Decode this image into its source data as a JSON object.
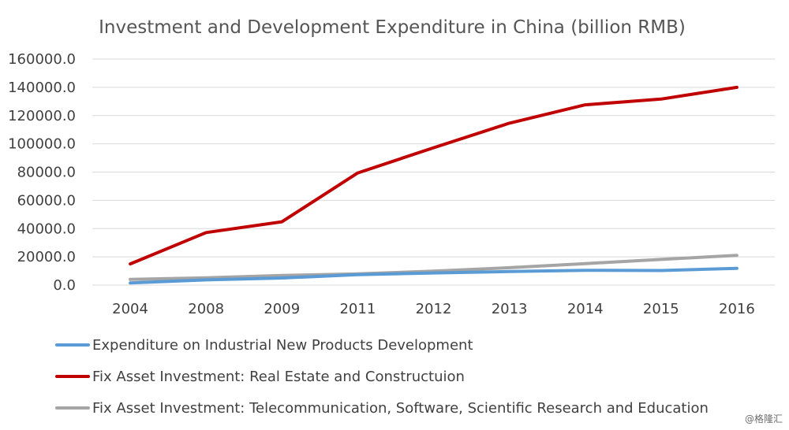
{
  "watermark": "@格隆汇",
  "chart_data": {
    "type": "line",
    "title": "Investment and Development Expenditure in China (billion RMB)",
    "xlabel": "",
    "ylabel": "",
    "categories": [
      "2004",
      "2008",
      "2009",
      "2011",
      "2012",
      "2013",
      "2014",
      "2015",
      "2016"
    ],
    "ylim": [
      0,
      160000
    ],
    "yticks": [
      "0.0",
      "20000.0",
      "40000.0",
      "60000.0",
      "80000.0",
      "100000.0",
      "120000.0",
      "140000.0",
      "160000.0"
    ],
    "grid": true,
    "legend_position": "bottom",
    "series": [
      {
        "name": "Expenditure on Industrial New Products Development",
        "color": "#5b9bd5",
        "values": [
          1500,
          3700,
          5000,
          7400,
          8600,
          9600,
          10500,
          10300,
          11800
        ]
      },
      {
        "name": "Fix Asset Investment: Real Estate and Constructuion",
        "color": "#c00000",
        "values": [
          15000,
          37200,
          44800,
          79400,
          97200,
          114600,
          127600,
          131700,
          140000
        ]
      },
      {
        "name": "Fix Asset Investment: Telecommunication, Software, Scientific Research and Education",
        "color": "#a5a5a5",
        "values": [
          4000,
          5200,
          6800,
          7900,
          9900,
          12300,
          15200,
          18200,
          21000
        ]
      }
    ]
  }
}
